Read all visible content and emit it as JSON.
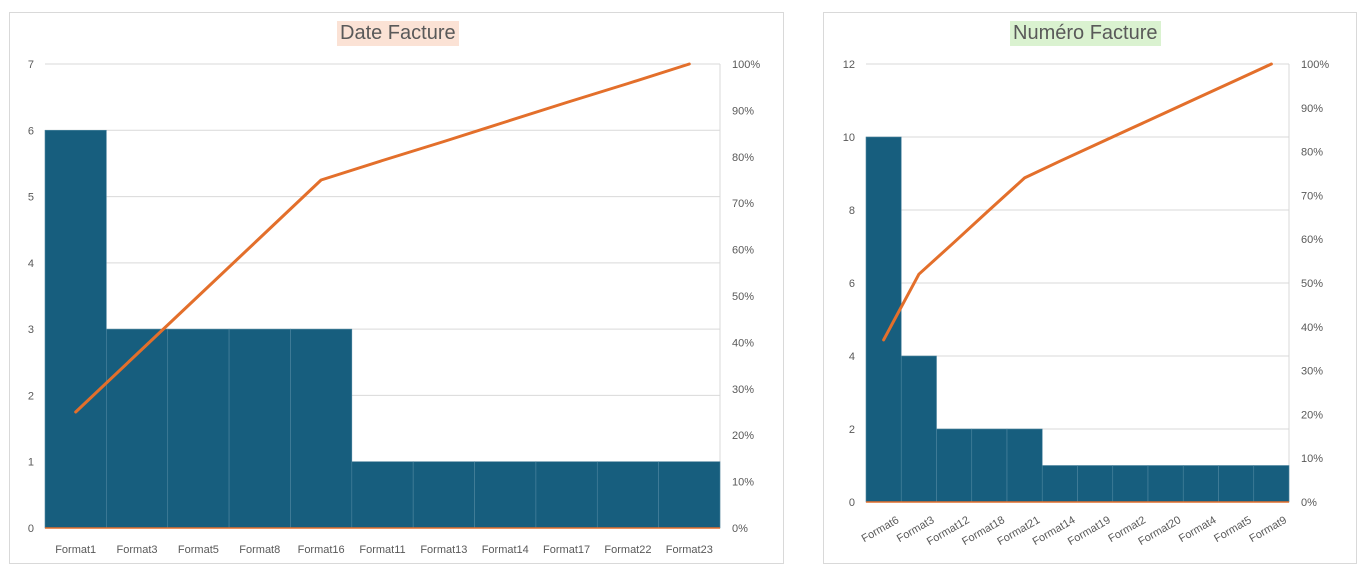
{
  "colors": {
    "bar": "#175E7E",
    "bar_edge": "#4E86A0",
    "line": "#E36F2B",
    "grid": "#D9D9D9",
    "axis_text": "#595959",
    "title_left_bg": "#FBE2D5",
    "title_right_bg": "#DAF2D0"
  },
  "chart_data": [
    {
      "type": "bar",
      "title": "Date Facture",
      "categories": [
        "Format1",
        "Format3",
        "Format5",
        "Format8",
        "Format16",
        "Format11",
        "Format13",
        "Format14",
        "Format17",
        "Format22",
        "Format23"
      ],
      "values": [
        6,
        3,
        3,
        3,
        3,
        1,
        1,
        1,
        1,
        1,
        1
      ],
      "cumulative_pct": [
        25,
        37.5,
        50,
        62.5,
        75,
        79.2,
        83.3,
        87.5,
        91.7,
        95.8,
        100
      ],
      "ylim": [
        0,
        7
      ],
      "y_ticks": [
        "0",
        "1",
        "2",
        "3",
        "4",
        "5",
        "6",
        "7"
      ],
      "y2lim": [
        0,
        100
      ],
      "y2_ticks": [
        "0%",
        "10%",
        "20%",
        "30%",
        "40%",
        "50%",
        "60%",
        "70%",
        "80%",
        "90%",
        "100%"
      ],
      "grid": true,
      "legend": "none"
    },
    {
      "type": "bar",
      "title": "Numéro Facture",
      "categories": [
        "Format6",
        "Format3",
        "Format12",
        "Format18",
        "Format21",
        "Format14",
        "Format19",
        "Format2",
        "Format20",
        "Format4",
        "Format5",
        "Format9"
      ],
      "values": [
        10,
        4,
        2,
        2,
        2,
        1,
        1,
        1,
        1,
        1,
        1,
        1
      ],
      "cumulative_pct": [
        37,
        52,
        59.3,
        66.7,
        74,
        77.8,
        81.5,
        85.2,
        88.9,
        92.6,
        96.3,
        100
      ],
      "ylim": [
        0,
        12
      ],
      "y_ticks": [
        "0",
        "2",
        "4",
        "6",
        "8",
        "10",
        "12"
      ],
      "y2lim": [
        0,
        100
      ],
      "y2_ticks": [
        "0%",
        "10%",
        "20%",
        "30%",
        "40%",
        "50%",
        "60%",
        "70%",
        "80%",
        "90%",
        "100%"
      ],
      "grid": true,
      "legend": "none"
    }
  ]
}
